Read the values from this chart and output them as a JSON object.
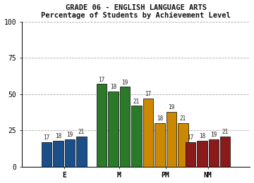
{
  "title_line1": "GRADE 06 - ENGLISH LANGUAGE ARTS",
  "title_line2": "Percentage of Students by Achievement Level",
  "categories": [
    "E",
    "M",
    "PM",
    "NM"
  ],
  "series_labels": [
    "17",
    "18",
    "19",
    "21"
  ],
  "values": {
    "E": [
      17,
      18,
      19,
      21
    ],
    "M": [
      57,
      52,
      55,
      42
    ],
    "PM": [
      47,
      30,
      38,
      30
    ],
    "NM": [
      17,
      18,
      19,
      21
    ]
  },
  "bar_labels": {
    "E": [
      17,
      18,
      19,
      21
    ],
    "M": [
      17,
      18,
      19,
      21
    ],
    "PM": [
      17,
      18,
      19,
      21
    ],
    "NM": [
      17,
      18,
      19,
      21
    ]
  },
  "colors": {
    "E": "#1b4f8a",
    "M": "#2a7a2a",
    "PM": "#cc8800",
    "NM": "#8b1a1a"
  },
  "ylim": [
    0,
    100
  ],
  "yticks": [
    0,
    25,
    50,
    75,
    100
  ],
  "bar_width": 0.055,
  "background_color": "#ffffff",
  "plot_bg": "#ffffff",
  "font_family": "monospace",
  "title_fontsize": 7.5,
  "label_fontsize": 5.5,
  "tick_fontsize": 7
}
